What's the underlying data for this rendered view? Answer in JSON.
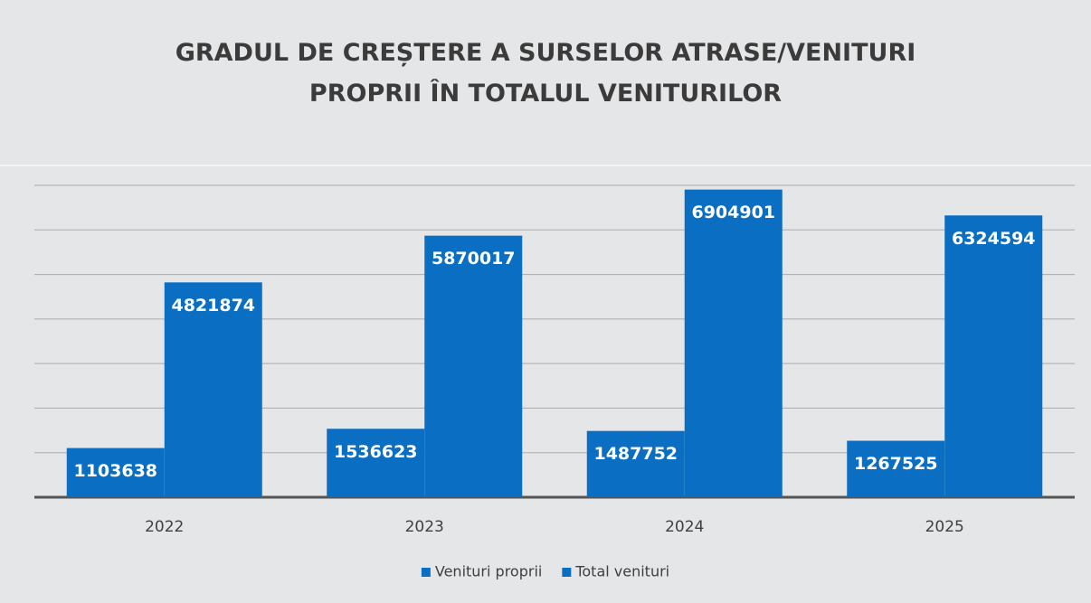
{
  "chart_data": {
    "type": "bar",
    "title": "GRADUL DE CREȘTERE A SURSELOR ATRASE/VENITURI PROPRII ÎN TOTALUL VENITURILOR",
    "categories": [
      "2022",
      "2023",
      "2024",
      "2025"
    ],
    "series": [
      {
        "name": "Venituri proprii",
        "color": "#0a6fc2",
        "values": [
          1103638,
          1536623,
          1487752,
          1267525
        ]
      },
      {
        "name": "Total venituri",
        "color": "#0a6fc2",
        "values": [
          4821874,
          5870017,
          6904901,
          6324594
        ]
      }
    ],
    "ylim": [
      0,
      7000000
    ],
    "yticks": [
      0,
      1000000,
      2000000,
      3000000,
      4000000,
      5000000,
      6000000,
      7000000
    ],
    "grid": true,
    "legend": "bottom"
  }
}
